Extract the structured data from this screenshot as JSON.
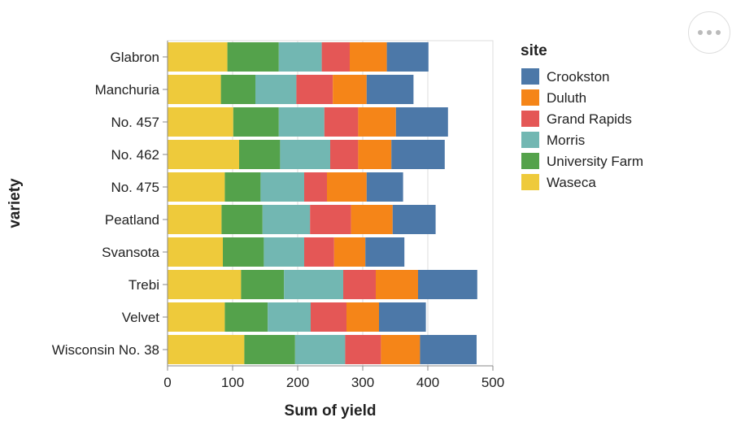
{
  "chart_data": {
    "type": "bar",
    "orientation": "horizontal",
    "stacked": true,
    "xlabel": "Sum of yield",
    "ylabel": "variety",
    "xlim": [
      0,
      500
    ],
    "xticks": [
      0,
      100,
      200,
      300,
      400,
      500
    ],
    "grid": true,
    "legend": {
      "title": "site",
      "position": "right"
    },
    "categories": [
      "Glabron",
      "Manchuria",
      "No. 457",
      "No. 462",
      "No. 475",
      "Peatland",
      "Svansota",
      "Trebi",
      "Velvet",
      "Wisconsin No. 38"
    ],
    "series": [
      {
        "name": "Waseca",
        "color": "#eeca3b",
        "values": [
          92,
          82,
          101,
          110,
          88,
          83,
          85,
          113,
          88,
          118
        ]
      },
      {
        "name": "University Farm",
        "color": "#54a24b",
        "values": [
          79,
          53,
          70,
          63,
          55,
          63,
          63,
          66,
          66,
          78
        ]
      },
      {
        "name": "Morris",
        "color": "#72b7b2",
        "values": [
          66,
          63,
          70,
          77,
          67,
          73,
          62,
          91,
          66,
          77
        ]
      },
      {
        "name": "Grand Rapids",
        "color": "#e45756",
        "values": [
          43,
          56,
          52,
          43,
          35,
          63,
          46,
          50,
          55,
          55
        ]
      },
      {
        "name": "Duluth",
        "color": "#f58518",
        "values": [
          57,
          52,
          58,
          51,
          61,
          64,
          48,
          65,
          50,
          60
        ]
      },
      {
        "name": "Crookston",
        "color": "#4c78a8",
        "values": [
          64,
          72,
          80,
          82,
          56,
          66,
          60,
          91,
          72,
          87
        ]
      }
    ],
    "legend_order": [
      "Crookston",
      "Duluth",
      "Grand Rapids",
      "Morris",
      "University Farm",
      "Waseca"
    ]
  }
}
